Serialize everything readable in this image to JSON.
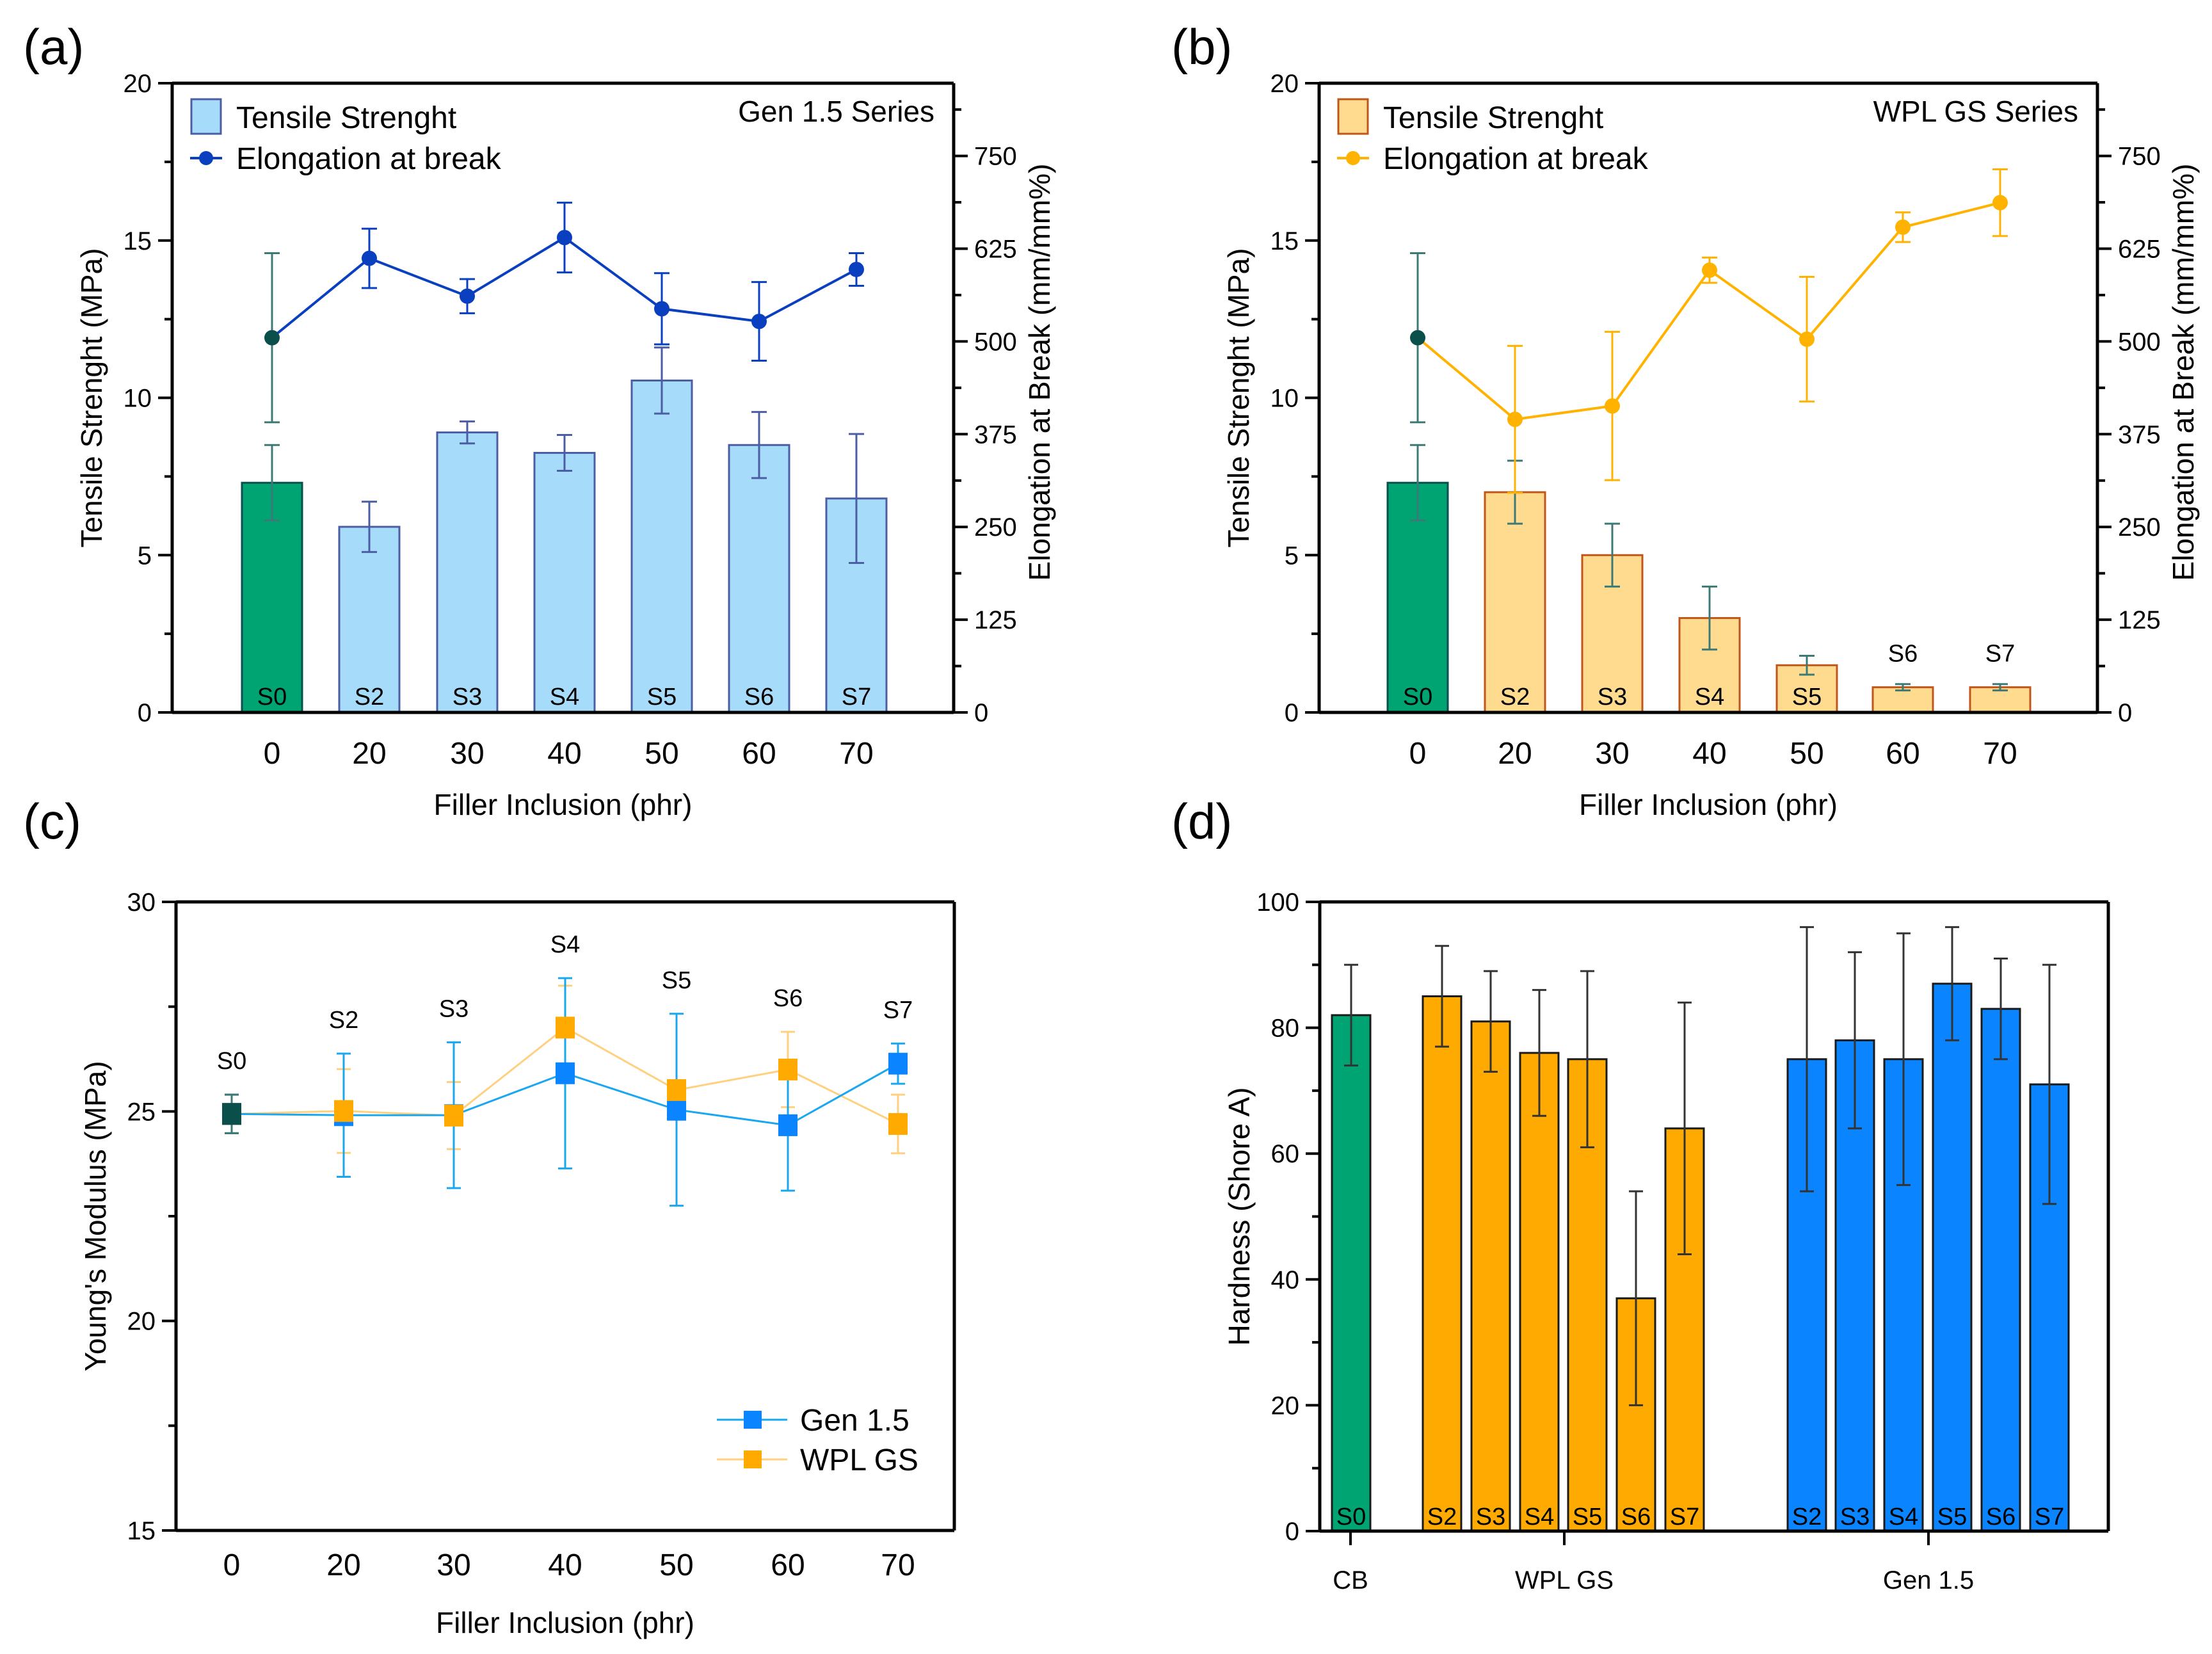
{
  "figure": {
    "panel_labels": [
      "(a)",
      "(b)",
      "(c)",
      "(d)"
    ]
  },
  "colors": {
    "control_green": "#00A472",
    "control_dark": "#0B4F4A",
    "gen_bar_fill": "#A6DBFA",
    "gen_bar_edge": "#4B5EA5",
    "gen_line": "#0A3FBF",
    "wpl_bar_fill": "#FFDB8F",
    "wpl_bar_edge": "#C0561A",
    "wpl_line": "#FFB300",
    "gen_marker_c": "#0A84FF",
    "gen_line_c": "#1AA7F0",
    "wpl_marker_c": "#FFAA00",
    "wpl_line_c": "#FFD080",
    "gen_bar_d": "#0A84FF",
    "wpl_bar_d": "#FFAA00",
    "errbar_control": "#3E7A75"
  },
  "chart_data": [
    {
      "id": "a",
      "type": "bar",
      "title": "Gen 1.5 Series",
      "xlabel": "Filler Inclusion (phr)",
      "ylabel": "Tensile Strenght (MPa)",
      "y2label": "Elongation at Break (mm/mm%)",
      "categories": [
        "0",
        "20",
        "30",
        "40",
        "50",
        "60",
        "70"
      ],
      "sample_labels": [
        "S0",
        "S2",
        "S3",
        "S4",
        "S5",
        "S6",
        "S7"
      ],
      "ylim": [
        0,
        20
      ],
      "yticks": [
        0,
        5,
        10,
        15,
        20
      ],
      "y2lim": [
        0,
        848
      ],
      "y2ticks": [
        0,
        125,
        250,
        375,
        500,
        625,
        750
      ],
      "legend": [
        "Tensile Strenght",
        "Elongation at break"
      ],
      "legend_position": "top-left",
      "series": [
        {
          "name": "Tensile Strenght",
          "kind": "bar",
          "axis": "left",
          "values": [
            7.3,
            5.9,
            8.9,
            8.25,
            10.55,
            8.5,
            6.8
          ],
          "errors": [
            1.2,
            0.8,
            0.35,
            0.57,
            1.05,
            1.05,
            2.05
          ]
        },
        {
          "name": "Elongation at break",
          "kind": "line",
          "axis": "right",
          "values": [
            505,
            612,
            561,
            640,
            544,
            527,
            597
          ],
          "errors": [
            114,
            40,
            23,
            47,
            48,
            53,
            22
          ]
        }
      ]
    },
    {
      "id": "b",
      "type": "bar",
      "title": "WPL GS Series",
      "xlabel": "Filler Inclusion (phr)",
      "ylabel": "Tensile Strenght (MPa)",
      "y2label": "Elongation at Break (mm/mm%)",
      "categories": [
        "0",
        "20",
        "30",
        "40",
        "50",
        "60",
        "70"
      ],
      "sample_labels": [
        "S0",
        "S2",
        "S3",
        "S4",
        "S5",
        "S6",
        "S7"
      ],
      "ylim": [
        0,
        20
      ],
      "yticks": [
        0,
        5,
        10,
        15,
        20
      ],
      "y2lim": [
        0,
        848
      ],
      "y2ticks": [
        0,
        125,
        250,
        375,
        500,
        625,
        750
      ],
      "legend": [
        "Tensile Strenght",
        "Elongation at break"
      ],
      "legend_position": "top-left",
      "series": [
        {
          "name": "Tensile Strenght",
          "kind": "bar",
          "axis": "left",
          "values": [
            7.3,
            7.0,
            5.0,
            3.0,
            1.5,
            0.8,
            0.8
          ],
          "errors": [
            1.2,
            1.0,
            1.0,
            1.0,
            0.3,
            0.1,
            0.1
          ]
        },
        {
          "name": "Elongation at break",
          "kind": "line",
          "axis": "right",
          "values": [
            505,
            395,
            413,
            596,
            503,
            654,
            687
          ],
          "errors": [
            114,
            99,
            100,
            17,
            84,
            20,
            45
          ]
        }
      ]
    },
    {
      "id": "c",
      "type": "line",
      "title": "",
      "xlabel": "Filler Inclusion (phr)",
      "ylabel": "Young's Modulus (MPa)",
      "categories": [
        "0",
        "20",
        "30",
        "40",
        "50",
        "60",
        "70"
      ],
      "sample_labels": [
        "S0",
        "S2",
        "S3",
        "S4",
        "S5",
        "S6",
        "S7"
      ],
      "ylim": [
        15,
        30
      ],
      "yticks": [
        15,
        20,
        25,
        30
      ],
      "legend": [
        "Gen 1.5",
        "WPL GS"
      ],
      "legend_position": "bottom-right",
      "series": [
        {
          "name": "Gen 1.5",
          "values": [
            24.94,
            24.91,
            24.91,
            25.91,
            25.04,
            24.67,
            26.14
          ],
          "errors": [
            0.46,
            1.47,
            1.74,
            2.27,
            2.29,
            1.56,
            0.48
          ]
        },
        {
          "name": "WPL GS",
          "values": [
            24.94,
            25.01,
            24.9,
            27.0,
            25.51,
            26.0,
            24.7
          ],
          "errors": [
            0.46,
            1.0,
            0.8,
            1.0,
            0.18,
            0.9,
            0.7
          ]
        }
      ]
    },
    {
      "id": "d",
      "type": "bar",
      "title": "",
      "xlabel": "",
      "ylabel": "Hardness (Shore A)",
      "ylim": [
        0,
        100
      ],
      "yticks": [
        0,
        20,
        40,
        60,
        80,
        100
      ],
      "group_labels": [
        "CB",
        "WPL GS",
        "Gen 1.5"
      ],
      "series": [
        {
          "name": "CB",
          "labels": [
            "S0"
          ],
          "values": [
            82
          ],
          "errors": [
            8
          ]
        },
        {
          "name": "WPL GS",
          "labels": [
            "S2",
            "S3",
            "S4",
            "S5",
            "S6",
            "S7"
          ],
          "values": [
            85,
            81,
            76,
            75,
            37,
            64
          ],
          "errors": [
            8,
            8,
            10,
            14,
            17,
            20
          ]
        },
        {
          "name": "Gen 1.5",
          "labels": [
            "S2",
            "S3",
            "S4",
            "S5",
            "S6",
            "S7"
          ],
          "values": [
            75,
            78,
            75,
            87,
            83,
            71
          ],
          "errors": [
            21,
            14,
            20,
            9,
            8,
            19
          ]
        }
      ]
    }
  ]
}
